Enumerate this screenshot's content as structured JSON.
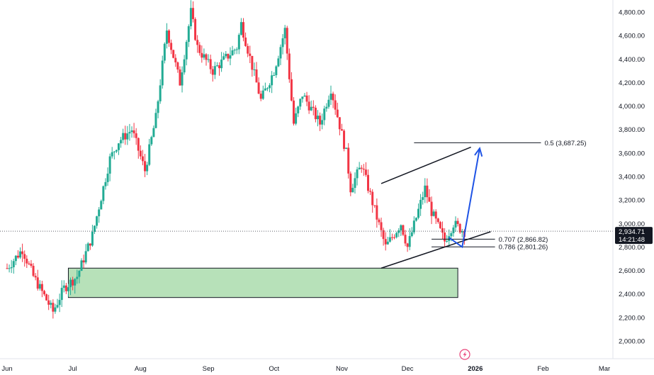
{
  "chart_data": {
    "type": "candlestick",
    "y_axis": {
      "ticks": [
        "4,800.00",
        "4,600.00",
        "4,400.00",
        "4,200.00",
        "4,000.00",
        "3,800.00",
        "3,600.00",
        "3,400.00",
        "3,200.00",
        "3,000.00",
        "2,800.00",
        "2,600.00",
        "2,400.00",
        "2,200.00",
        "2,000.00"
      ],
      "values": [
        4800,
        4600,
        4400,
        4200,
        4000,
        3800,
        3600,
        3400,
        3200,
        3000,
        2800,
        2600,
        2400,
        2200,
        2000
      ],
      "range": [
        1870,
        4890
      ]
    },
    "x_axis": {
      "labels": [
        "Jun",
        "Jul",
        "Aug",
        "Sep",
        "Oct",
        "Nov",
        "Dec",
        "2026",
        "Feb",
        "Mar"
      ],
      "bold": [
        "2026"
      ]
    },
    "last_price": {
      "price": "2,934.71",
      "countdown": "14:21:48",
      "value": 2934.71,
      "color": "#22ab94"
    },
    "fib_levels": [
      {
        "label": "0.5 (3,687.25)",
        "value": 3687.25
      },
      {
        "label": "0.707 (2,866.82)",
        "value": 2866.82
      },
      {
        "label": "0.786 (2,801.26)",
        "value": 2801.26
      }
    ],
    "support_zone": {
      "low": 2370,
      "high": 2620,
      "color": "#b7e1b9"
    },
    "channel": {
      "upper": [
        {
          "date": "2025-11-19",
          "value": 3340
        },
        {
          "date": "2025-12-30",
          "value": 3650
        }
      ],
      "lower": [
        {
          "date": "2025-11-19",
          "value": 2620
        },
        {
          "date": "2026-01-08",
          "value": 2930
        }
      ]
    },
    "projection_arrow": {
      "color": "#1e53e5",
      "points": [
        {
          "date": "2025-12-26",
          "value": 2800
        },
        {
          "date": "2026-01-03",
          "value": 3640
        }
      ]
    },
    "colors": {
      "up": "#22ab94",
      "down": "#f23645"
    },
    "candles_daily_anchors": [
      {
        "date": "2025-06-01",
        "value": 2620
      },
      {
        "date": "2025-06-08",
        "value": 2780
      },
      {
        "date": "2025-06-13",
        "value": 2550
      },
      {
        "date": "2025-06-22",
        "value": 2250
      },
      {
        "date": "2025-06-27",
        "value": 2450
      },
      {
        "date": "2025-07-03",
        "value": 2550
      },
      {
        "date": "2025-07-10",
        "value": 2900
      },
      {
        "date": "2025-07-18",
        "value": 3550
      },
      {
        "date": "2025-07-22",
        "value": 3700
      },
      {
        "date": "2025-07-28",
        "value": 3800
      },
      {
        "date": "2025-08-03",
        "value": 3450
      },
      {
        "date": "2025-08-08",
        "value": 3900
      },
      {
        "date": "2025-08-13",
        "value": 4650
      },
      {
        "date": "2025-08-19",
        "value": 4200
      },
      {
        "date": "2025-08-24",
        "value": 4800
      },
      {
        "date": "2025-08-27",
        "value": 4500
      },
      {
        "date": "2025-09-03",
        "value": 4300
      },
      {
        "date": "2025-09-14",
        "value": 4500
      },
      {
        "date": "2025-09-16",
        "value": 4700
      },
      {
        "date": "2025-09-25",
        "value": 4050
      },
      {
        "date": "2025-10-01",
        "value": 4300
      },
      {
        "date": "2025-10-06",
        "value": 4650
      },
      {
        "date": "2025-10-10",
        "value": 3850
      },
      {
        "date": "2025-10-14",
        "value": 4100
      },
      {
        "date": "2025-10-22",
        "value": 3850
      },
      {
        "date": "2025-10-27",
        "value": 4150
      },
      {
        "date": "2025-11-03",
        "value": 3600
      },
      {
        "date": "2025-11-05",
        "value": 3300
      },
      {
        "date": "2025-11-10",
        "value": 3500
      },
      {
        "date": "2025-11-17",
        "value": 3050
      },
      {
        "date": "2025-11-21",
        "value": 2800
      },
      {
        "date": "2025-11-28",
        "value": 3000
      },
      {
        "date": "2025-12-01",
        "value": 2800
      },
      {
        "date": "2025-12-09",
        "value": 3300
      },
      {
        "date": "2025-12-12",
        "value": 3100
      },
      {
        "date": "2025-12-18",
        "value": 2850
      },
      {
        "date": "2025-12-22",
        "value": 3000
      },
      {
        "date": "2025-12-27",
        "value": 2930
      }
    ]
  },
  "toolbar": {
    "icon": "lightning-icon"
  }
}
